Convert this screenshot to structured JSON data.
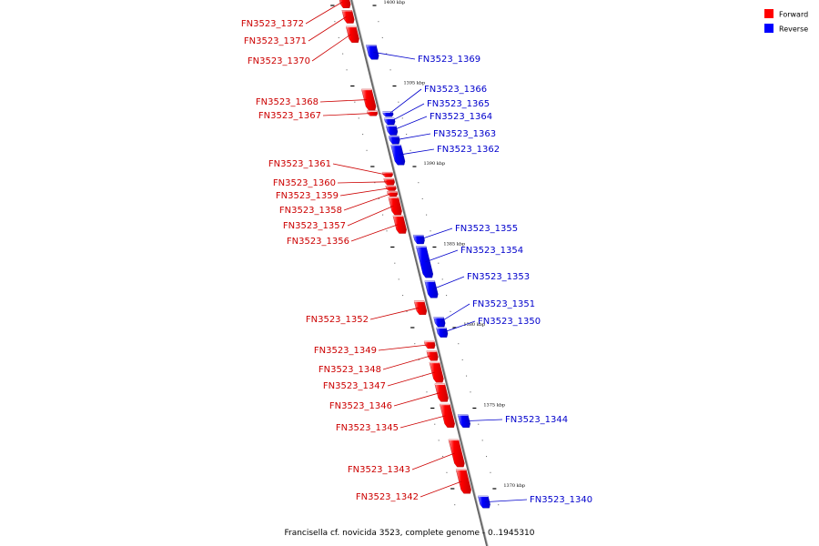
{
  "caption": "Francisella cf. novicida 3523, complete genome - 0..1945310",
  "legend": [
    {
      "label": "Forward",
      "color": "#ff0000"
    },
    {
      "label": "Reverse",
      "color": "#0000ff"
    }
  ],
  "ticks": [
    {
      "label": "1400 kbp",
      "kbp": 1400
    },
    {
      "label": "1395 kbp",
      "kbp": 1395
    },
    {
      "label": "1390 kbp",
      "kbp": 1390
    },
    {
      "label": "1385 kbp",
      "kbp": 1385
    },
    {
      "label": "1380 kbp",
      "kbp": 1380
    },
    {
      "label": "1375 kbp",
      "kbp": 1375
    },
    {
      "label": "1370 kbp",
      "kbp": 1370
    }
  ],
  "genes": [
    {
      "name": "FN3523_1372",
      "strand": "forward",
      "start_kbp": 1400.6,
      "end_kbp": 1399.85
    },
    {
      "name": "FN3523_1371",
      "strand": "forward",
      "start_kbp": 1399.7,
      "end_kbp": 1398.9
    },
    {
      "name": "FN3523_1370",
      "strand": "forward",
      "start_kbp": 1398.7,
      "end_kbp": 1397.7
    },
    {
      "name": "FN3523_1369",
      "strand": "reverse",
      "start_kbp": 1397.55,
      "end_kbp": 1396.65
    },
    {
      "name": "FN3523_1368",
      "strand": "forward",
      "start_kbp": 1394.8,
      "end_kbp": 1393.5
    },
    {
      "name": "FN3523_1367",
      "strand": "forward",
      "start_kbp": 1393.45,
      "end_kbp": 1393.15
    },
    {
      "name": "FN3523_1366",
      "strand": "reverse",
      "start_kbp": 1393.4,
      "end_kbp": 1393.1
    },
    {
      "name": "FN3523_1365",
      "strand": "reverse",
      "start_kbp": 1393.0,
      "end_kbp": 1392.6
    },
    {
      "name": "FN3523_1364",
      "strand": "reverse",
      "start_kbp": 1392.55,
      "end_kbp": 1391.95
    },
    {
      "name": "FN3523_1363",
      "strand": "reverse",
      "start_kbp": 1391.9,
      "end_kbp": 1391.4
    },
    {
      "name": "FN3523_1362",
      "strand": "reverse",
      "start_kbp": 1391.35,
      "end_kbp": 1390.1
    },
    {
      "name": "FN3523_1361",
      "strand": "forward",
      "start_kbp": 1389.65,
      "end_kbp": 1389.35
    },
    {
      "name": "FN3523_1360",
      "strand": "forward",
      "start_kbp": 1389.25,
      "end_kbp": 1388.85
    },
    {
      "name": "FN3523_1359",
      "strand": "forward",
      "start_kbp": 1388.8,
      "end_kbp": 1388.5
    },
    {
      "name": "FN3523_1358",
      "strand": "forward",
      "start_kbp": 1388.45,
      "end_kbp": 1388.15
    },
    {
      "name": "FN3523_1357",
      "strand": "forward",
      "start_kbp": 1388.1,
      "end_kbp": 1387.0
    },
    {
      "name": "FN3523_1356",
      "strand": "forward",
      "start_kbp": 1386.95,
      "end_kbp": 1385.85
    },
    {
      "name": "FN3523_1355",
      "strand": "reverse",
      "start_kbp": 1385.75,
      "end_kbp": 1385.2
    },
    {
      "name": "FN3523_1354",
      "strand": "reverse",
      "start_kbp": 1385.05,
      "end_kbp": 1383.1
    },
    {
      "name": "FN3523_1353",
      "strand": "reverse",
      "start_kbp": 1382.9,
      "end_kbp": 1381.85
    },
    {
      "name": "FN3523_1352",
      "strand": "forward",
      "start_kbp": 1381.65,
      "end_kbp": 1380.8
    },
    {
      "name": "FN3523_1351",
      "strand": "reverse",
      "start_kbp": 1380.65,
      "end_kbp": 1380.05
    },
    {
      "name": "FN3523_1350",
      "strand": "reverse",
      "start_kbp": 1380.0,
      "end_kbp": 1379.4
    },
    {
      "name": "FN3523_1349",
      "strand": "forward",
      "start_kbp": 1379.15,
      "end_kbp": 1378.7
    },
    {
      "name": "FN3523_1348",
      "strand": "forward",
      "start_kbp": 1378.55,
      "end_kbp": 1377.95
    },
    {
      "name": "FN3523_1347",
      "strand": "forward",
      "start_kbp": 1377.85,
      "end_kbp": 1376.6
    },
    {
      "name": "FN3523_1346",
      "strand": "forward",
      "start_kbp": 1376.5,
      "end_kbp": 1375.4
    },
    {
      "name": "FN3523_1345",
      "strand": "forward",
      "start_kbp": 1375.25,
      "end_kbp": 1373.8
    },
    {
      "name": "FN3523_1344",
      "strand": "reverse",
      "start_kbp": 1374.6,
      "end_kbp": 1373.8
    },
    {
      "name": "FN3523_1343",
      "strand": "forward",
      "start_kbp": 1373.05,
      "end_kbp": 1371.35
    },
    {
      "name": "FN3523_1342",
      "strand": "forward",
      "start_kbp": 1371.2,
      "end_kbp": 1369.7
    },
    {
      "name": "FN3523_1340",
      "strand": "reverse",
      "start_kbp": 1369.55,
      "end_kbp": 1368.8
    }
  ]
}
